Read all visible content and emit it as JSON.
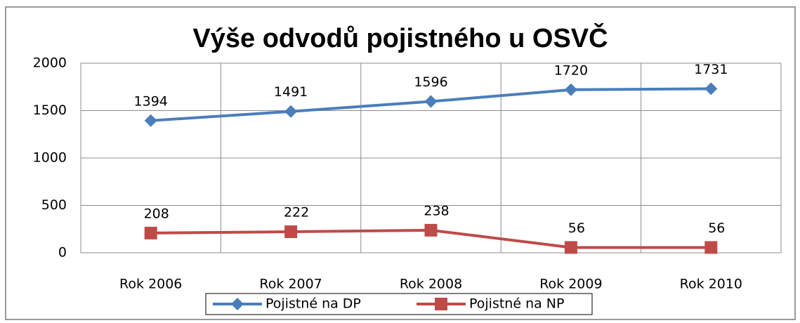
{
  "chart_data": {
    "type": "line",
    "title": "Výše odvodů pojistného u OSVČ",
    "categories": [
      "Rok 2006",
      "Rok 2007",
      "Rok 2008",
      "Rok 2009",
      "Rok 2010"
    ],
    "series": [
      {
        "name": "Pojistné na DP",
        "color": "#4a7ebb",
        "marker": "diamond",
        "values": [
          1394,
          1491,
          1596,
          1720,
          1731
        ]
      },
      {
        "name": "Pojistné na NP",
        "color": "#be4b48",
        "marker": "square",
        "values": [
          208,
          222,
          238,
          56,
          56
        ]
      }
    ],
    "ylim": [
      0,
      2000
    ],
    "yticks": [
      0,
      500,
      1000,
      1500,
      2000
    ],
    "grid": true,
    "legend": "bottom"
  }
}
